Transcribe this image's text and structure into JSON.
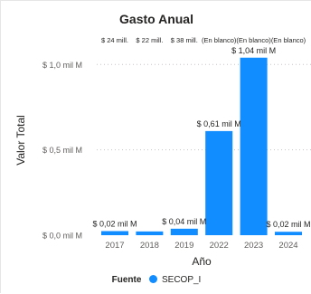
{
  "colors": {
    "bar": "#118DFF",
    "text": "#252423",
    "axis_text": "#605E5C",
    "grid": "#C8C6C4"
  },
  "chart_data": {
    "type": "bar",
    "title": "Gasto Anual",
    "xlabel": "Año",
    "ylabel": "Valor Total",
    "categories": [
      "2017",
      "2018",
      "2019",
      "2022",
      "2023",
      "2024"
    ],
    "top_labels": [
      "$ 24 mill.",
      "$ 22 mill.",
      "$ 38 mill.",
      "(En blanco)",
      "(En blanco)",
      "(En blanco)"
    ],
    "series": [
      {
        "name": "SECOP_I",
        "values": [
          0.024,
          0.022,
          0.038,
          0.61,
          1.04,
          0.02
        ],
        "data_labels": [
          "$ 0,02 mil M",
          "",
          "$ 0,04 mil M",
          "$ 0,61 mil M",
          "$ 1,04 mil M",
          "$ 0,02 mil M"
        ]
      }
    ],
    "ylim": [
      0,
      1.15
    ],
    "yticks": [
      0,
      0.5,
      1.0
    ],
    "ytick_labels": [
      "$ 0,0 mil M",
      "$ 0,5 mil M",
      "$ 1,0 mil M"
    ],
    "grid": true,
    "legend": {
      "title": "Fuente",
      "position": "bottom"
    }
  }
}
